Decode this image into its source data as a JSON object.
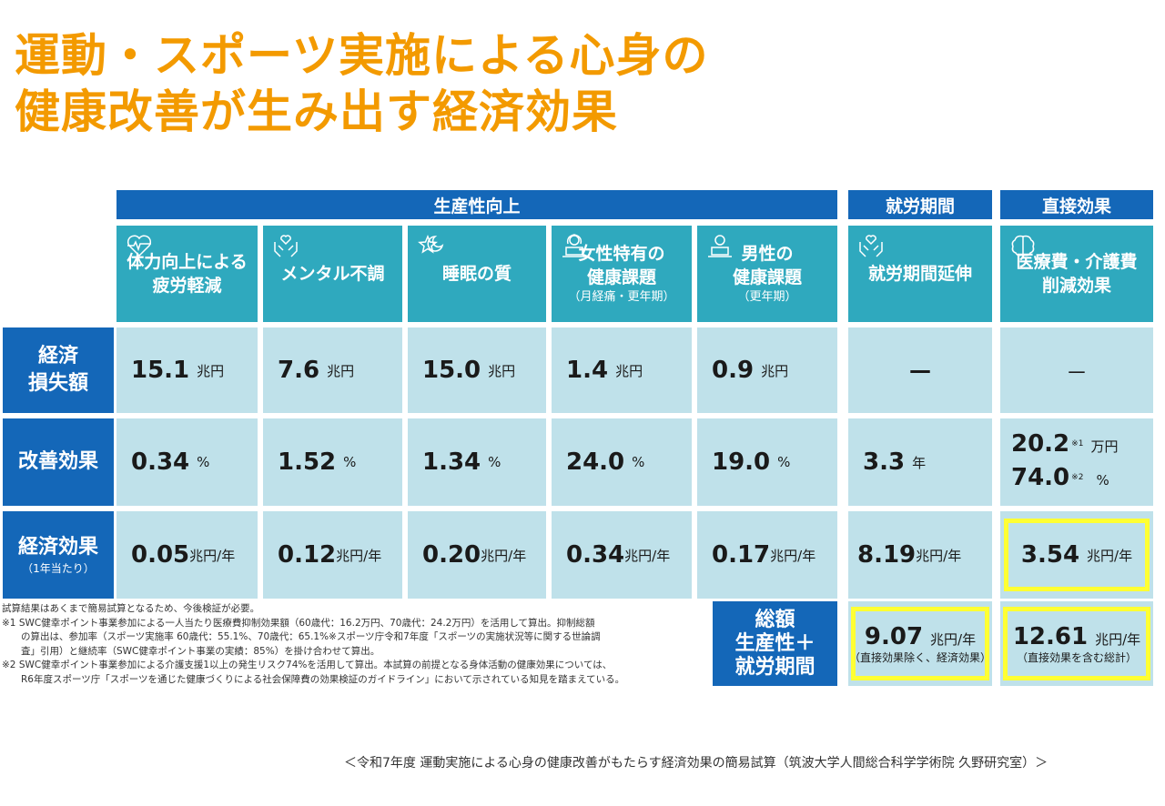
{
  "title_line1": "運動・スポーツ実施による心身の",
  "title_line2": "健康改善が生み出す経済効果",
  "groups": {
    "productivity": "生産性向上",
    "employment": "就労期間",
    "direct": "直接効果"
  },
  "categories": [
    {
      "label1": "体力向上による",
      "label2": "疲労軽減",
      "sub": "",
      "icon": "heart-pulse-icon"
    },
    {
      "label1": "メンタル不調",
      "label2": "",
      "sub": "",
      "icon": "hands-heart-icon"
    },
    {
      "label1": "睡眠の質",
      "label2": "",
      "sub": "",
      "icon": "sleep-star-icon"
    },
    {
      "label1": "女性特有の",
      "label2": "健康課題",
      "sub": "（月経痛・更年期）",
      "icon": "woman-laptop-icon"
    },
    {
      "label1": "男性の",
      "label2": "健康課題",
      "sub": "（更年期）",
      "icon": "man-laptop-icon"
    },
    {
      "label1": "就労期間延伸",
      "label2": "",
      "sub": "",
      "icon": "hands-heart-icon"
    },
    {
      "label1": "医療費・介護費",
      "label2": "削減効果",
      "sub": "",
      "icon": "brain-icon"
    }
  ],
  "row_headers": {
    "loss": "経済\n損失額",
    "loss1": "経済",
    "loss2": "損失額",
    "improve": "改善効果",
    "effect": "経済効果",
    "effect_sub": "（1年当たり）",
    "total1": "総額",
    "total2": "生産性＋",
    "total3": "就労期間"
  },
  "loss": [
    {
      "num": "15.1",
      "unit": "兆円"
    },
    {
      "num": "7.6",
      "unit": "兆円"
    },
    {
      "num": "15.0",
      "unit": "兆円"
    },
    {
      "num": "1.4",
      "unit": "兆円"
    },
    {
      "num": "0.9",
      "unit": "兆円"
    },
    {
      "num": "—",
      "unit": ""
    },
    {
      "num": "－",
      "unit": ""
    }
  ],
  "improve": [
    {
      "num": "0.34",
      "unit": "%"
    },
    {
      "num": "1.52",
      "unit": "%"
    },
    {
      "num": "1.34",
      "unit": "%"
    },
    {
      "num": "24.0",
      "unit": "%"
    },
    {
      "num": "19.0",
      "unit": "%"
    },
    {
      "num": "3.3",
      "unit": "年"
    }
  ],
  "improve_direct": {
    "num1": "20.2",
    "sup1": "※1",
    "unit1": "万円",
    "num2": "74.0",
    "sup2": "※2",
    "unit2": "%"
  },
  "effect": [
    {
      "num": "0.05",
      "unit": "兆円/年"
    },
    {
      "num": "0.12",
      "unit": "兆円/年"
    },
    {
      "num": "0.20",
      "unit": "兆円/年"
    },
    {
      "num": "0.34",
      "unit": "兆円/年"
    },
    {
      "num": "0.17",
      "unit": "兆円/年"
    },
    {
      "num": "8.19",
      "unit": "兆円/年"
    },
    {
      "num": "3.54",
      "unit": "兆円/年"
    }
  ],
  "totals": [
    {
      "num": "9.07",
      "unit": "兆円/年",
      "caption": "（直接効果除く、経済効果）"
    },
    {
      "num": "12.61",
      "unit": "兆円/年",
      "caption": "（直接効果を含む総計）"
    }
  ],
  "notes": [
    "試算結果はあくまで簡易試算となるため、今後検証が必要。",
    "※1 SWC健幸ポイント事業参加による一人当たり医療費抑制効果額（60歳代：16.2万円、70歳代：24.2万円）を活用して算出。抑制総額",
    "　　の算出は、参加率（スポーツ実施率 60歳代：55.1%、70歳代：65.1%※スポーツ庁令和7年度「スポーツの実施状況等に関する世論調",
    "　　査」引用）と継続率（SWC健幸ポイント事業の実績：85%）を掛け合わせて算出。",
    "※2 SWC健幸ポイント事業参加による介護支援1以上の発生リスク74%を活用して算出。本試算の前提となる身体活動の健康効果については、",
    "　　R6年度スポーツ庁「スポーツを通じた健康づくりによる社会保障費の効果検証のガイドライン」において示されている知見を踏まえている。"
  ],
  "source": "＜令和7年度 運動実施による心身の健康改善がもたらす経済効果の簡易試算（筑波大学人間総合科学学術院 久野研究室）＞",
  "colors": {
    "title": "#f39a00",
    "header_blue": "#1467b8",
    "category_teal": "#2fa9be",
    "cell_light": "#bfe1ea",
    "highlight": "#ffff33"
  }
}
